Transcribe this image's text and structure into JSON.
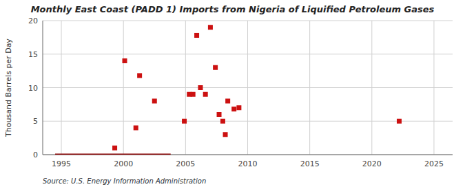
{
  "chart_data": {
    "type": "scatter",
    "title": "Monthly East Coast (PADD 1) Imports from Nigeria of Liquified Petroleum Gases",
    "ylabel": "Thousand Barrels per Day",
    "annotations": [
      "Source: U.S. Energy Information Administration"
    ],
    "series": [
      {
        "type": "scatter",
        "color": "#cc1111",
        "marker": "square",
        "x": [
          1999.3,
          2000.1,
          2001.3,
          2002.5,
          2004.9,
          2005.3,
          2005.6,
          2005.9,
          2006.2,
          2006.6,
          2007.0,
          2007.4,
          2007.7,
          2008.0,
          2008.4,
          2008.9,
          2022.2,
          2001.0,
          2008.2,
          2009.3
        ],
        "values": [
          1.0,
          14.0,
          11.8,
          8.0,
          5.0,
          9.0,
          9.0,
          17.8,
          10.0,
          9.0,
          19.0,
          13.0,
          6.0,
          5.0,
          8.0,
          6.8,
          5.0,
          4.0,
          3.0,
          7.0
        ]
      },
      {
        "type": "line",
        "color": "#8b0000",
        "line_style": "solid",
        "x": [
          1994.5,
          2003.8
        ],
        "values": [
          0,
          0
        ]
      }
    ],
    "xlim": [
      1993.5,
      2026.5
    ],
    "ylim": [
      0,
      20
    ],
    "xticks": [
      1995,
      2000,
      2005,
      2010,
      2015,
      2020,
      2025
    ],
    "yticks": [
      0,
      5,
      10,
      15,
      20
    ],
    "grid": true
  }
}
